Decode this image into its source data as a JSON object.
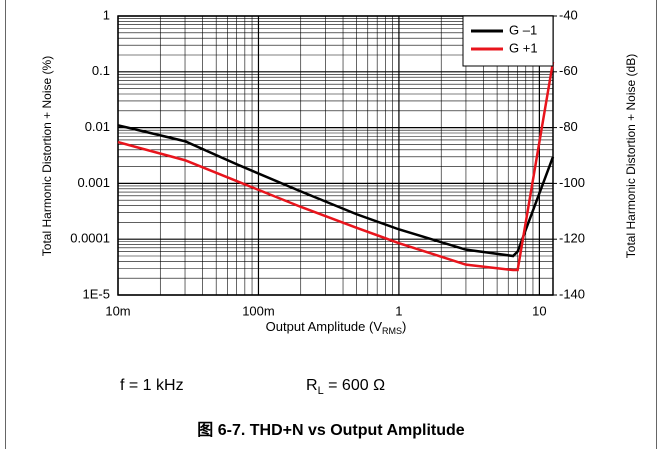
{
  "chart_data": {
    "type": "line",
    "ylabel": "Total Harmonic Distortion + Noise (%)",
    "y2label": "Total Harmonic Distortion + Noise (dB)",
    "xlabel": [
      "Output Amplitude (V",
      "RMS",
      ")"
    ],
    "x": [
      0.01,
      0.03,
      0.07,
      0.2,
      0.5,
      1,
      3,
      6.5,
      7,
      12.5
    ],
    "series": [
      {
        "name": "G –1",
        "color": "#000000",
        "values": [
          0.011,
          0.0057,
          0.0022,
          0.00072,
          0.00028,
          0.00015,
          6.5e-05,
          5e-05,
          6e-05,
          0.003
        ]
      },
      {
        "name": "G +1",
        "color": "#e8141c",
        "values": [
          0.0055,
          0.0026,
          0.0011,
          0.00038,
          0.00016,
          8.5e-05,
          3.5e-05,
          2.8e-05,
          2.8e-05,
          0.15
        ]
      }
    ],
    "xlim": [
      0.01,
      12.5
    ],
    "xticks": [
      {
        "value": 0.01,
        "label": "10m"
      },
      {
        "value": 0.1,
        "label": "100m"
      },
      1,
      10
    ],
    "ylim": [
      1e-05,
      1
    ],
    "yticks": [
      {
        "value": 1e-05,
        "label": "1E-5"
      },
      0.0001,
      0.001,
      0.01,
      0.1,
      1
    ],
    "y2lim": [
      -140,
      -40
    ],
    "y2ticks": [
      -140,
      -120,
      -100,
      -80,
      -60,
      -40
    ],
    "log_x": true,
    "log_y": true,
    "grid": true,
    "legend": "top-right",
    "annotations": [
      [
        "f = 1 kHz"
      ],
      [
        "R",
        "L",
        " = 600 Ω"
      ]
    ],
    "caption": "图 6-7. THD+N vs Output Amplitude"
  }
}
